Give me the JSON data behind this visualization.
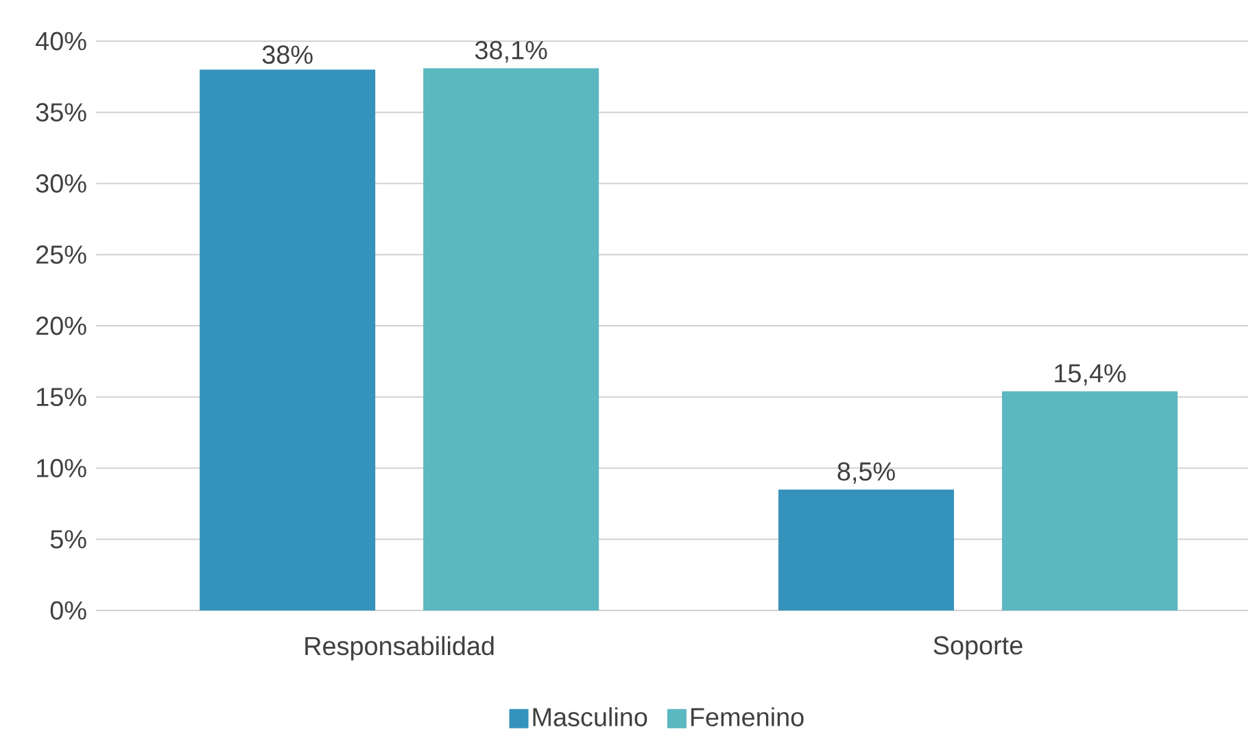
{
  "chart_data": {
    "type": "bar",
    "categories": [
      "Responsabilidad",
      "Soporte"
    ],
    "series": [
      {
        "name": "Masculino",
        "color": "#3592bb",
        "values": [
          38,
          8.5
        ],
        "value_labels": [
          "38%",
          "8,5%"
        ]
      },
      {
        "name": "Femenino",
        "color": "#5bb7c0",
        "values": [
          38.1,
          15.4
        ],
        "value_labels": [
          "38,1%",
          "15,4%"
        ]
      }
    ],
    "ylim": [
      0,
      40
    ],
    "yticks": [
      {
        "value": 0,
        "label": "0%"
      },
      {
        "value": 5,
        "label": "5%"
      },
      {
        "value": 10,
        "label": "10%"
      },
      {
        "value": 15,
        "label": "15%"
      },
      {
        "value": 20,
        "label": "20%"
      },
      {
        "value": 25,
        "label": "25%"
      },
      {
        "value": 30,
        "label": "30%"
      },
      {
        "value": 35,
        "label": "35%"
      },
      {
        "value": 40,
        "label": "40%"
      }
    ],
    "grid": "y",
    "legend": "bottom"
  }
}
